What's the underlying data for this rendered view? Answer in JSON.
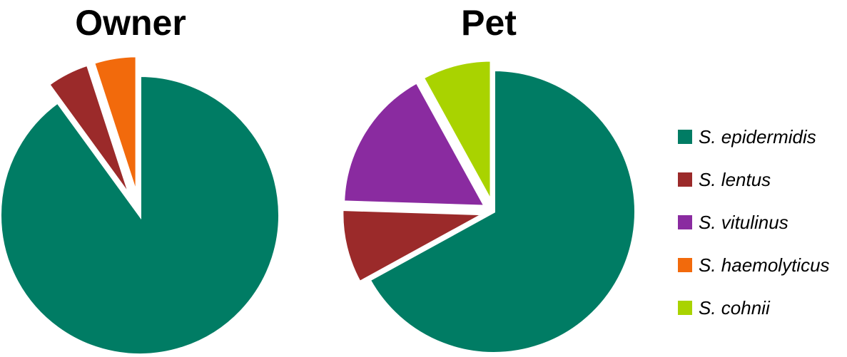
{
  "chart_data": [
    {
      "type": "pie",
      "title": "Owner",
      "slices": [
        {
          "label": "S. epidermidis",
          "value": 90,
          "color": "#007C64",
          "exploded": false
        },
        {
          "label": "S. lentus",
          "value": 5,
          "color": "#9B2A2A",
          "exploded": true
        },
        {
          "label": "S. haemolyticus",
          "value": 5,
          "color": "#F26A0C",
          "exploded": true
        }
      ]
    },
    {
      "type": "pie",
      "title": "Pet",
      "slices": [
        {
          "label": "S. epidermidis",
          "value": 67,
          "color": "#007C64",
          "exploded": false
        },
        {
          "label": "S. lentus",
          "value": 8.5,
          "color": "#9B2A2A",
          "exploded": true
        },
        {
          "label": "S. vitulinus",
          "value": 16.5,
          "color": "#8A2BA0",
          "exploded": true
        },
        {
          "label": "S. cohnii",
          "value": 8,
          "color": "#A9D300",
          "exploded": true
        }
      ]
    }
  ],
  "legend": {
    "placement": "right",
    "items": [
      {
        "label": "S. epidermidis",
        "color": "#007C64"
      },
      {
        "label": "S. lentus",
        "color": "#9B2A2A"
      },
      {
        "label": "S. vitulinus",
        "color": "#8A2BA0"
      },
      {
        "label": "S. haemolyticus",
        "color": "#F26A0C"
      },
      {
        "label": "S. cohnii",
        "color": "#A9D300"
      }
    ]
  }
}
